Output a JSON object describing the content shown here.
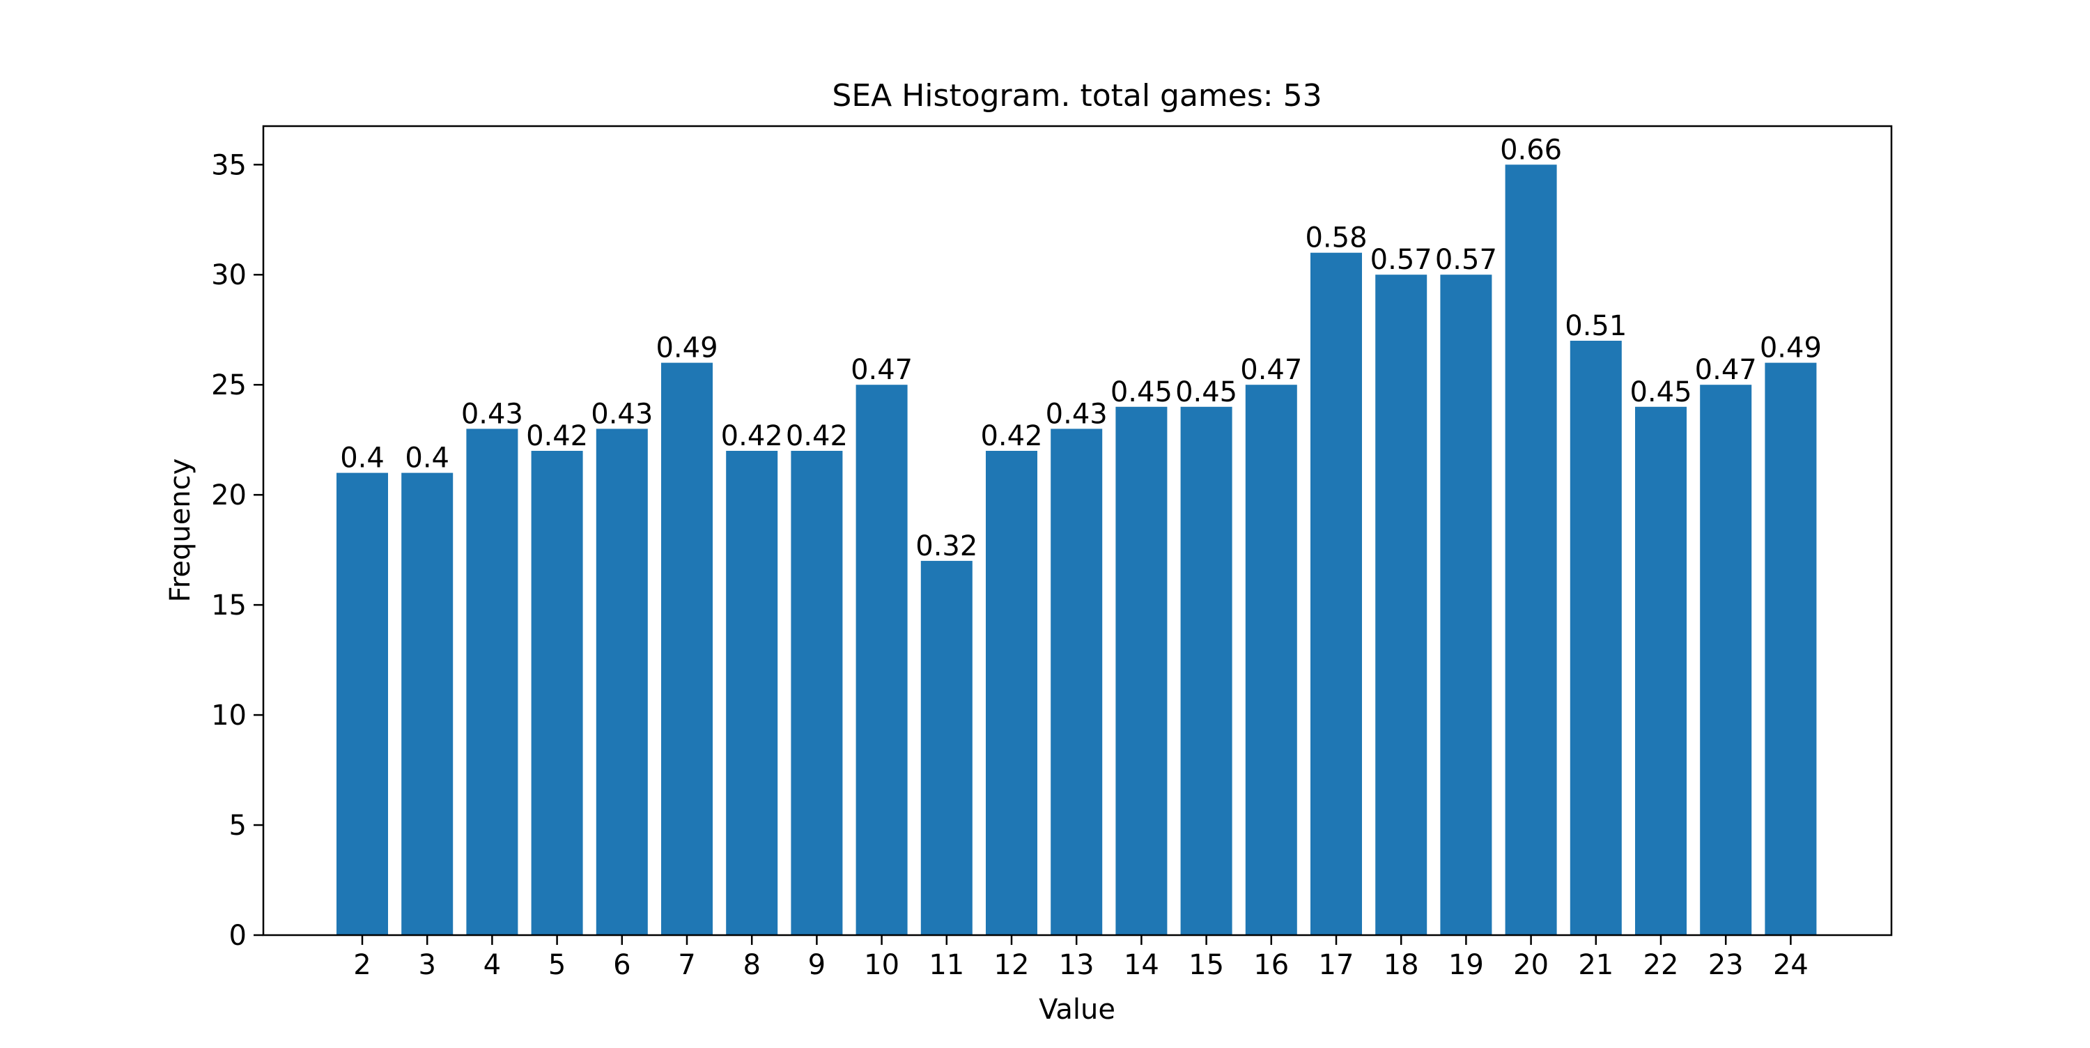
{
  "chart_data": {
    "type": "bar",
    "title": "SEA Histogram. total games: 53",
    "xlabel": "Value",
    "ylabel": "Frequency",
    "ylim": [
      0,
      36.75
    ],
    "yticks": [
      0,
      5,
      10,
      15,
      20,
      25,
      30,
      35
    ],
    "grid": false,
    "categories": [
      "2",
      "3",
      "4",
      "5",
      "6",
      "7",
      "8",
      "9",
      "10",
      "11",
      "12",
      "13",
      "14",
      "15",
      "16",
      "17",
      "18",
      "19",
      "20",
      "21",
      "22",
      "23",
      "24"
    ],
    "values": [
      21,
      21,
      23,
      22,
      23,
      26,
      22,
      22,
      25,
      17,
      22,
      23,
      24,
      24,
      25,
      31,
      30,
      30,
      35,
      27,
      24,
      25,
      26
    ],
    "bar_labels": [
      "0.4",
      "0.4",
      "0.43",
      "0.42",
      "0.43",
      "0.49",
      "0.42",
      "0.42",
      "0.47",
      "0.32",
      "0.42",
      "0.43",
      "0.45",
      "0.45",
      "0.47",
      "0.58",
      "0.57",
      "0.57",
      "0.66",
      "0.51",
      "0.45",
      "0.47",
      "0.49"
    ],
    "colors": {
      "bar": "#1f77b4",
      "axis": "#000000",
      "background": "#ffffff"
    }
  }
}
